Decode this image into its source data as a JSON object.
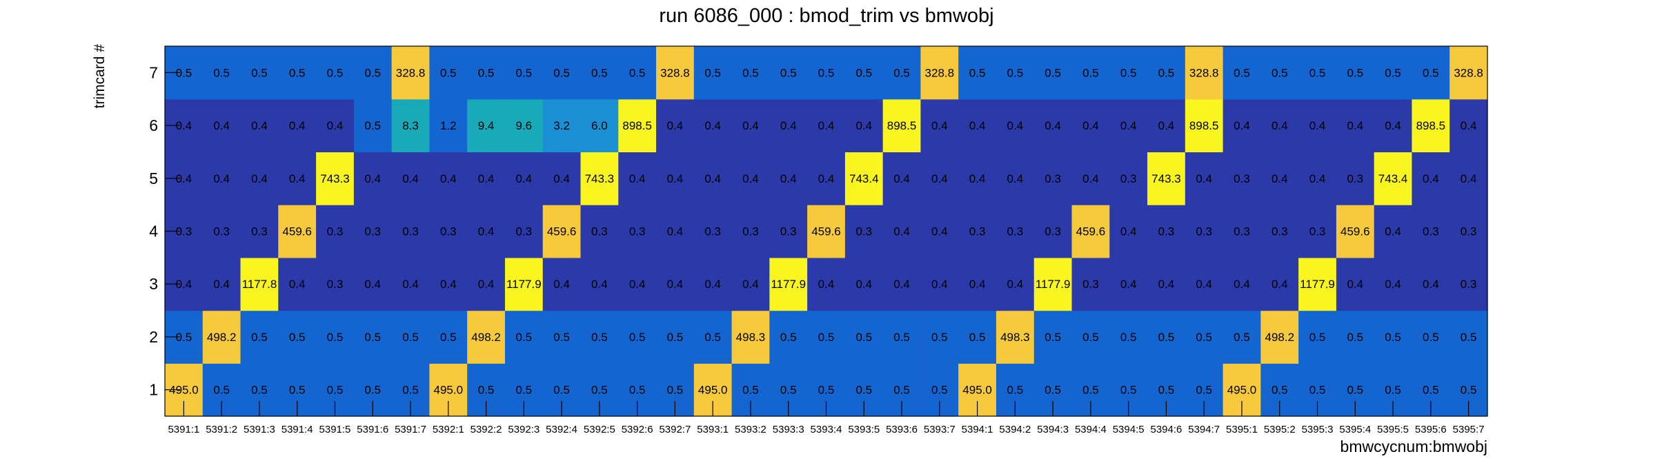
{
  "chart_data": {
    "type": "heatmap",
    "title": "run 6086_000 : bmod_trim vs bmwobj",
    "xlabel": "bmwcycnum:bmwobj",
    "ylabel": "trimcard #",
    "x_categories": [
      "5391:1",
      "5391:2",
      "5391:3",
      "5391:4",
      "5391:5",
      "5391:6",
      "5391:7",
      "5392:1",
      "5392:2",
      "5392:3",
      "5392:4",
      "5392:5",
      "5392:6",
      "5392:7",
      "5393:1",
      "5393:2",
      "5393:3",
      "5393:4",
      "5393:5",
      "5393:6",
      "5393:7",
      "5394:1",
      "5394:2",
      "5394:3",
      "5394:4",
      "5394:5",
      "5394:6",
      "5394:7",
      "5395:1",
      "5395:2",
      "5395:3",
      "5395:4",
      "5395:5",
      "5395:6",
      "5395:7"
    ],
    "y_categories": [
      "1",
      "2",
      "3",
      "4",
      "5",
      "6",
      "7"
    ],
    "cells": [
      [
        "495.0",
        "0.5",
        "0.5",
        "0.5",
        "0.5",
        "0.5",
        "0.5",
        "495.0",
        "0.5",
        "0.5",
        "0.5",
        "0.5",
        "0.5",
        "0.5",
        "495.0",
        "0.5",
        "0.5",
        "0.5",
        "0.5",
        "0.5",
        "0.5",
        "495.0",
        "0.5",
        "0.5",
        "0.5",
        "0.5",
        "0.5",
        "0.5",
        "495.0",
        "0.5",
        "0.5",
        "0.5",
        "0.5",
        "0.5",
        "0.5"
      ],
      [
        "0.5",
        "498.2",
        "0.5",
        "0.5",
        "0.5",
        "0.5",
        "0.5",
        "0.5",
        "498.2",
        "0.5",
        "0.5",
        "0.5",
        "0.5",
        "0.5",
        "0.5",
        "498.3",
        "0.5",
        "0.5",
        "0.5",
        "0.5",
        "0.5",
        "0.5",
        "498.3",
        "0.5",
        "0.5",
        "0.5",
        "0.5",
        "0.5",
        "0.5",
        "498.2",
        "0.5",
        "0.5",
        "0.5",
        "0.5",
        "0.5"
      ],
      [
        "0.4",
        "0.4",
        "1177.8",
        "0.4",
        "0.3",
        "0.4",
        "0.4",
        "0.4",
        "0.4",
        "1177.9",
        "0.4",
        "0.4",
        "0.4",
        "0.4",
        "0.4",
        "0.4",
        "1177.9",
        "0.4",
        "0.4",
        "0.4",
        "0.4",
        "0.4",
        "0.4",
        "1177.9",
        "0.3",
        "0.4",
        "0.4",
        "0.4",
        "0.4",
        "0.4",
        "1177.9",
        "0.4",
        "0.4",
        "0.4",
        "0.3"
      ],
      [
        "0.3",
        "0.3",
        "0.3",
        "459.6",
        "0.3",
        "0.3",
        "0.3",
        "0.3",
        "0.4",
        "0.3",
        "459.6",
        "0.3",
        "0.3",
        "0.4",
        "0.3",
        "0.3",
        "0.3",
        "459.6",
        "0.3",
        "0.4",
        "0.4",
        "0.3",
        "0.3",
        "0.3",
        "459.6",
        "0.4",
        "0.3",
        "0.3",
        "0.3",
        "0.3",
        "0.3",
        "459.6",
        "0.4",
        "0.3",
        "0.3"
      ],
      [
        "0.4",
        "0.4",
        "0.4",
        "0.4",
        "743.3",
        "0.4",
        "0.4",
        "0.4",
        "0.4",
        "0.4",
        "0.4",
        "743.3",
        "0.4",
        "0.4",
        "0.4",
        "0.4",
        "0.4",
        "0.4",
        "743.4",
        "0.4",
        "0.4",
        "0.4",
        "0.4",
        "0.3",
        "0.4",
        "0.3",
        "743.3",
        "0.4",
        "0.3",
        "0.4",
        "0.4",
        "0.3",
        "743.4",
        "0.4",
        "0.4"
      ],
      [
        "0.4",
        "0.4",
        "0.4",
        "0.4",
        "0.4",
        "0.5",
        "8.3",
        "1.2",
        "9.4",
        "9.6",
        "3.2",
        "6.0",
        "898.5",
        "0.4",
        "0.4",
        "0.4",
        "0.4",
        "0.4",
        "0.4",
        "898.5",
        "0.4",
        "0.4",
        "0.4",
        "0.4",
        "0.4",
        "0.4",
        "0.4",
        "898.5",
        "0.4",
        "0.4",
        "0.4",
        "0.4",
        "0.4",
        "898.5",
        "0.4"
      ],
      [
        "0.5",
        "0.5",
        "0.5",
        "0.5",
        "0.5",
        "0.5",
        "328.8",
        "0.5",
        "0.5",
        "0.5",
        "0.5",
        "0.5",
        "0.5",
        "328.8",
        "0.5",
        "0.5",
        "0.5",
        "0.5",
        "0.5",
        "0.5",
        "328.8",
        "0.5",
        "0.5",
        "0.5",
        "0.5",
        "0.5",
        "0.5",
        "328.8",
        "0.5",
        "0.5",
        "0.5",
        "0.5",
        "0.5",
        "0.5",
        "328.8"
      ]
    ],
    "colors": {
      "low": "#2b3aa8",
      "mid": "#1565d0",
      "teal": "#18aab8",
      "cyan": "#1a8fd4",
      "orange": "#f7c93c",
      "yellow": "#f8f520",
      "value_text": "#000000",
      "axis": "#000000"
    },
    "grid": false,
    "legend": "none"
  }
}
